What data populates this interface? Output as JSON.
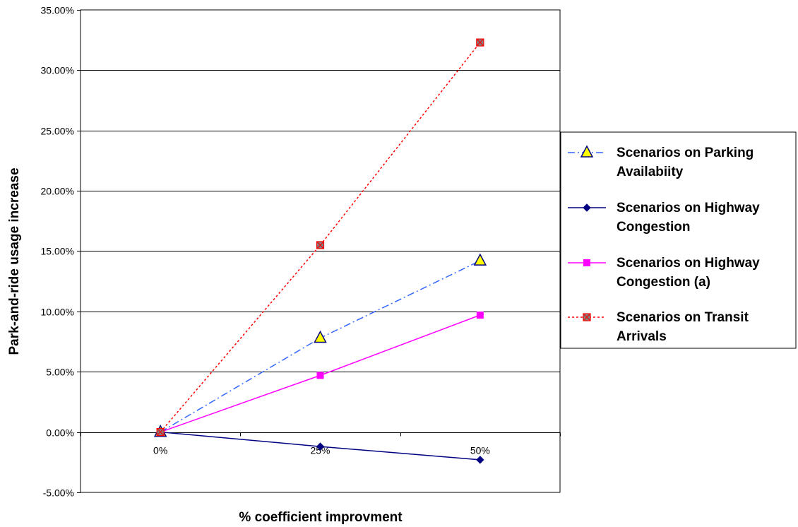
{
  "chart_data": {
    "type": "line",
    "xlabel": "% coefficient improvment",
    "ylabel": "Park-and-ride usage increase",
    "categories": [
      "0%",
      "25%",
      "50%"
    ],
    "ylim": [
      -0.05,
      0.35
    ],
    "ytick_step": 0.05,
    "y_tick_labels": [
      "-5.00%",
      "0.00%",
      "5.00%",
      "10.00%",
      "15.00%",
      "20.00%",
      "25.00%",
      "30.00%",
      "35.00%"
    ],
    "grid": true,
    "legend_position": "right",
    "series": [
      {
        "name": [
          "Scenarios on Parking",
          "Availabiity"
        ],
        "values": [
          0,
          0.078,
          0.142
        ],
        "color": "#3366ff",
        "line_style": "dash-dot",
        "marker": "triangle",
        "marker_fill": "#ffff00",
        "marker_stroke": "#000080"
      },
      {
        "name": [
          "Scenarios on Highway",
          "Congestion"
        ],
        "values": [
          0,
          -0.012,
          -0.023
        ],
        "color": "#000080",
        "line_style": "solid",
        "marker": "diamond",
        "marker_fill": "#000080",
        "marker_stroke": "#000080"
      },
      {
        "name": [
          "Scenarios on Highway",
          "Congestion (a)"
        ],
        "values": [
          0,
          0.047,
          0.097
        ],
        "color": "#ff00ff",
        "line_style": "solid",
        "marker": "square",
        "marker_fill": "#ff00ff",
        "marker_stroke": "#ff00ff"
      },
      {
        "name": [
          "Scenarios on Transit",
          "Arrivals"
        ],
        "values": [
          0,
          0.155,
          0.323
        ],
        "color": "#ff0000",
        "line_style": "dotted",
        "marker": "x-square",
        "marker_fill": "#808080",
        "marker_stroke": "#ff0000"
      }
    ]
  }
}
